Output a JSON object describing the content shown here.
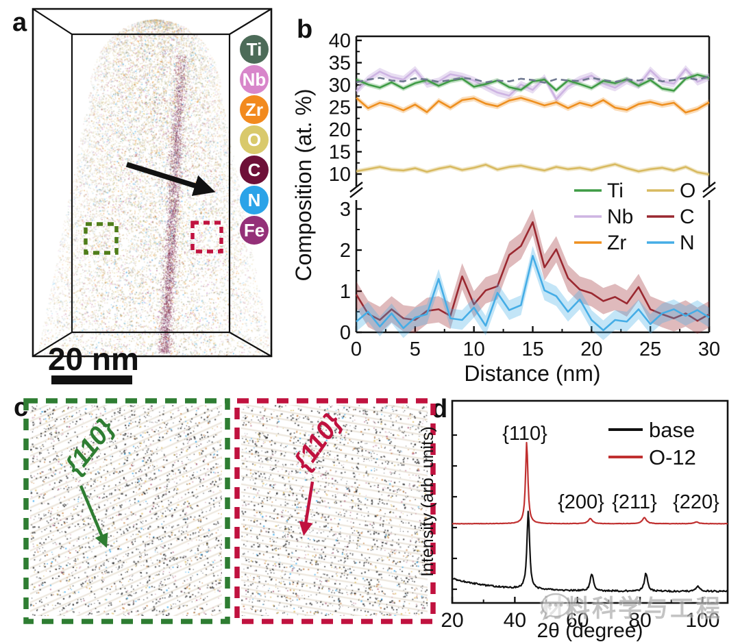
{
  "panel_a": {
    "label": "a",
    "scale_bar": "20 nm",
    "elements": [
      {
        "symbol": "Ti",
        "color": "#4c6b58"
      },
      {
        "symbol": "Nb",
        "color": "#d886ca"
      },
      {
        "symbol": "Zr",
        "color": "#f28a1e"
      },
      {
        "symbol": "O",
        "color": "#d9c96b"
      },
      {
        "symbol": "C",
        "color": "#6e1038"
      },
      {
        "symbol": "N",
        "color": "#2ba3e8"
      },
      {
        "symbol": "Fe",
        "color": "#943078"
      }
    ]
  },
  "panel_b": {
    "label": "b"
  },
  "panel_c": {
    "label": "c",
    "green_region": {
      "label": "{110}",
      "color": "#2e7d32",
      "box_color": "#2e7d32"
    },
    "red_region": {
      "label": "{110}",
      "color": "#c0123f",
      "box_color": "#c0123f"
    }
  },
  "panel_d": {
    "label": "d"
  },
  "watermark": {
    "text": "材料科学与工程"
  },
  "chart_data": [
    {
      "id": "composition-profile",
      "type": "line",
      "xlabel": "Distance (nm)",
      "ylabel": "Composition (at. %)",
      "xlim": [
        0,
        30
      ],
      "x_ticks": [
        0,
        5,
        10,
        15,
        20,
        25,
        30
      ],
      "x_step": 1,
      "broken_axis": {
        "upper_ticks": [
          10,
          15,
          20,
          25,
          30,
          35,
          40
        ],
        "lower_ticks": [
          0,
          1,
          2,
          3
        ],
        "upper_range": [
          10,
          40
        ],
        "lower_range": [
          0,
          3
        ]
      },
      "grid": false,
      "legend_position": "center-right",
      "legend": {
        "col1": [
          "Ti",
          "Nb",
          "Zr"
        ],
        "col2": [
          "O",
          "C",
          "N"
        ]
      },
      "series": [
        {
          "name": "Nb",
          "color": "#cdb4e2",
          "band": 0.85,
          "band_alpha": 0.45,
          "section": "upper",
          "dashed": false,
          "values": [
            28.6,
            31.3,
            33.0,
            31.8,
            31.2,
            33.4,
            30.2,
            30.8,
            32.4,
            31.9,
            31.0,
            29.6,
            28.3,
            27.6,
            30.1,
            28.9,
            31.6,
            26.8,
            29.7,
            31.2,
            32.1,
            30.3,
            29.4,
            31.0,
            29.9,
            33.3,
            30.8,
            30.3,
            33.6,
            30.7,
            31.8
          ]
        },
        {
          "name": "Zr",
          "color": "#ee8f1f",
          "band": 0.65,
          "band_alpha": 0.3,
          "section": "upper",
          "dashed": false,
          "values": [
            27.1,
            24.8,
            26.0,
            25.4,
            24.3,
            25.6,
            23.9,
            26.4,
            24.9,
            26.6,
            27.0,
            25.8,
            25.2,
            26.5,
            27.1,
            26.3,
            25.4,
            26.1,
            24.8,
            26.0,
            25.3,
            26.6,
            24.9,
            24.4,
            25.7,
            26.2,
            25.5,
            26.0,
            23.8,
            24.6,
            26.1
          ]
        },
        {
          "name": "Ti",
          "color": "#3f9b45",
          "band": 0.55,
          "band_alpha": 0.3,
          "section": "upper",
          "dashed": false,
          "values": [
            31.2,
            30.1,
            29.4,
            30.6,
            29.2,
            30.4,
            31.1,
            29.8,
            30.9,
            31.4,
            29.6,
            30.2,
            31.0,
            29.5,
            28.9,
            30.8,
            31.2,
            28.8,
            31.0,
            30.2,
            29.3,
            30.9,
            30.4,
            31.3,
            29.8,
            31.1,
            29.2,
            28.7,
            31.4,
            32.3,
            31.6
          ]
        },
        {
          "name": "",
          "color": "#6f7890",
          "band": 0,
          "band_alpha": 0,
          "section": "upper",
          "dashed": true,
          "values": [
            30.6,
            31.2,
            31.6,
            31.0,
            30.8,
            31.5,
            31.2,
            30.7,
            31.1,
            31.6,
            31.3,
            30.6,
            31.0,
            30.8,
            31.4,
            31.1,
            30.5,
            31.3,
            31.0,
            30.9,
            31.6,
            31.1,
            30.7,
            31.2,
            31.0,
            31.5,
            30.8,
            31.1,
            31.6,
            31.2,
            31.9
          ]
        },
        {
          "name": "O",
          "color": "#d8ba60",
          "band": 0.5,
          "band_alpha": 0.35,
          "section": "upper",
          "dashed": false,
          "values": [
            10.6,
            11.1,
            11.6,
            11.0,
            10.8,
            11.3,
            10.5,
            11.2,
            11.7,
            10.9,
            11.4,
            12.1,
            11.0,
            11.6,
            11.9,
            11.3,
            10.8,
            11.6,
            11.1,
            11.4,
            10.9,
            11.6,
            12.2,
            11.3,
            10.6,
            11.1,
            11.4,
            10.8,
            11.6,
            10.4,
            9.9
          ]
        },
        {
          "name": "C",
          "color": "#9a2830",
          "band": 0.32,
          "band_alpha": 0.32,
          "section": "lower",
          "dashed": false,
          "values": [
            0.92,
            0.45,
            0.3,
            0.56,
            0.34,
            0.3,
            0.52,
            0.56,
            0.4,
            1.36,
            0.68,
            1.02,
            1.12,
            1.88,
            2.1,
            2.68,
            1.58,
            2.02,
            1.32,
            1.04,
            0.95,
            0.76,
            0.86,
            0.7,
            1.1,
            0.56,
            0.44,
            0.34,
            0.46,
            0.28,
            0.44
          ]
        },
        {
          "name": "N",
          "color": "#45ade6",
          "band": 0.24,
          "band_alpha": 0.32,
          "section": "lower",
          "dashed": false,
          "values": [
            0.26,
            0.5,
            0.14,
            0.46,
            0.1,
            0.36,
            0.44,
            1.3,
            0.34,
            0.3,
            0.6,
            0.16,
            0.96,
            0.54,
            0.66,
            1.86,
            1.02,
            0.88,
            0.5,
            0.8,
            0.3,
            0.05,
            0.3,
            0.26,
            0.56,
            0.2,
            0.46,
            0.56,
            0.4,
            0.54,
            0.36
          ]
        }
      ]
    },
    {
      "id": "xrd-pattern",
      "type": "line",
      "xlabel": "2θ (degree)",
      "ylabel": "Intensity (arb. units)",
      "xlim": [
        20,
        108
      ],
      "x_ticks": [
        20,
        40,
        60,
        80,
        100
      ],
      "grid": false,
      "legend_position": "top-right",
      "peak_labels": [
        "{110}",
        "{200}",
        "{211}",
        "{220}"
      ],
      "series": [
        {
          "name": "base",
          "color": "#111111",
          "offset": 0,
          "noise": 0.55,
          "background": {
            "amp": 9,
            "tau": 14,
            "floor": 1.4
          },
          "peaks": [
            {
              "two_theta": 44.3,
              "height": 55,
              "width": 0.5
            },
            {
              "two_theta": 64.6,
              "height": 12,
              "width": 0.6
            },
            {
              "two_theta": 81.9,
              "height": 12.5,
              "width": 0.6
            },
            {
              "two_theta": 98.5,
              "height": 3.5,
              "width": 0.7
            }
          ]
        },
        {
          "name": "O-12",
          "color": "#c03030",
          "offset": 48,
          "noise": 0.12,
          "background": {
            "amp": 0,
            "tau": 1,
            "floor": 0.4
          },
          "peaks": [
            {
              "two_theta": 43.8,
              "height": 57,
              "width": 0.45
            },
            {
              "two_theta": 64.1,
              "height": 3.5,
              "width": 0.8
            },
            {
              "two_theta": 81.4,
              "height": 4.2,
              "width": 0.8
            },
            {
              "two_theta": 98.0,
              "height": 1.2,
              "width": 0.8
            }
          ]
        }
      ]
    }
  ]
}
